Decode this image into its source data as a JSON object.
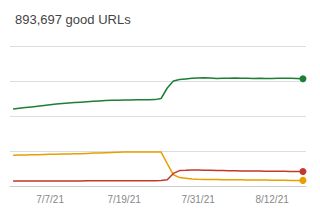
{
  "chart_data": {
    "type": "line",
    "title": "893,697 good URLs",
    "categories": [
      null,
      null,
      null,
      null,
      null,
      null,
      "7/7/21",
      null,
      null,
      null,
      null,
      null,
      null,
      null,
      null,
      null,
      null,
      null,
      "7/19/21",
      null,
      null,
      null,
      null,
      null,
      null,
      null,
      null,
      null,
      null,
      null,
      "7/31/21",
      null,
      null,
      null,
      null,
      null,
      null,
      null,
      null,
      null,
      null,
      null,
      "8/12/21",
      null,
      null,
      null,
      null,
      null
    ],
    "series": [
      {
        "color": "#1e7e34",
        "values": [
          55,
          55.5,
          56,
          56.5,
          57,
          57.5,
          58,
          58.5,
          59,
          59.3,
          59.6,
          59.9,
          60.2,
          60.5,
          60.8,
          61.0,
          61.2,
          61.3,
          61.4,
          61.5,
          61.55,
          61.6,
          61.65,
          61.7,
          62.5,
          70,
          75,
          76,
          76.5,
          77,
          77.2,
          77.3,
          77.1,
          76.8,
          76.9,
          77.0,
          77.1,
          77.0,
          76.9,
          76.8,
          76.9,
          76.8,
          76.85,
          76.9,
          76.95,
          77.0,
          76.8,
          76.6
        ]
      },
      {
        "color": "#e8a000",
        "values": [
          22,
          22.1,
          22.2,
          22.3,
          22.4,
          22.5,
          22.6,
          22.7,
          22.8,
          22.9,
          23.0,
          23.1,
          23.3,
          23.5,
          23.6,
          23.8,
          24.0,
          24.1,
          24.2,
          24.2,
          24.2,
          24.2,
          24.2,
          24.2,
          24.2,
          16,
          8,
          6,
          5.5,
          5.0,
          4.8,
          4.7,
          4.65,
          4.6,
          4.55,
          4.5,
          4.45,
          4.4,
          4.35,
          4.3,
          4.25,
          4.2,
          4.15,
          4.1,
          4.05,
          4.0,
          4.0,
          4.0
        ]
      },
      {
        "color": "#c0392b",
        "values": [
          3.5,
          3.5,
          3.5,
          3.5,
          3.5,
          3.5,
          3.5,
          3.5,
          3.5,
          3.5,
          3.5,
          3.5,
          3.7,
          3.7,
          3.7,
          3.7,
          3.7,
          3.7,
          3.7,
          3.7,
          3.7,
          3.7,
          3.8,
          3.8,
          3.9,
          4.5,
          9,
          11,
          11.2,
          11.5,
          11.4,
          11.3,
          11.2,
          11.1,
          11.0,
          10.9,
          10.85,
          10.8,
          10.75,
          10.7,
          10.65,
          10.6,
          10.55,
          10.5,
          10.45,
          10.4,
          10.4,
          10.4
        ]
      }
    ],
    "ylim": [
      0,
      100
    ],
    "yticks": [
      0,
      25,
      50,
      75,
      100
    ],
    "grid": true,
    "tick_labels": "x"
  }
}
